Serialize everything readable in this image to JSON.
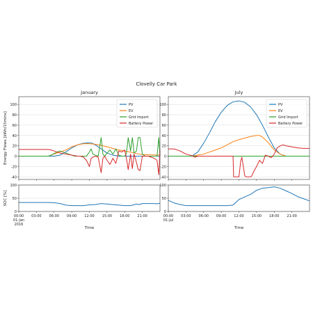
{
  "figure_title": "Clovelly Car Park",
  "colors": {
    "PV": "#1f77b4",
    "EV": "#ff7f0e",
    "Grid Import": "#2ca02c",
    "Battery Power": "#d62728",
    "SOC": "#1f77b4"
  },
  "chart_data": [
    {
      "type": "line",
      "panel": "energy",
      "title": "January",
      "ylabel": "Energy Flows [kWh/15mins]",
      "ylim": [
        -45,
        115
      ],
      "yticks": [
        -40,
        -20,
        0,
        20,
        40,
        60,
        80,
        100
      ],
      "grid": true,
      "legend": "top-right",
      "series": [
        {
          "name": "PV",
          "x": [
            0,
            6,
            7,
            8,
            9,
            10,
            11,
            12,
            12.5,
            13,
            14,
            15,
            16,
            17,
            24
          ],
          "y": [
            0,
            0,
            2,
            8,
            16,
            22,
            25,
            26,
            25,
            22,
            14,
            6,
            2,
            0,
            0
          ]
        },
        {
          "name": "EV",
          "x": [
            0,
            5,
            6,
            7,
            8,
            9,
            10,
            11,
            12,
            13,
            14,
            15,
            16,
            17,
            18,
            19,
            20,
            21,
            24
          ],
          "y": [
            0,
            0,
            4,
            8,
            12,
            18,
            22,
            24,
            24,
            23,
            21,
            18,
            15,
            12,
            10,
            8,
            5,
            3,
            2
          ]
        },
        {
          "name": "Grid Import",
          "x": [
            0,
            5,
            5.5,
            6,
            6.5,
            7,
            7.5,
            8,
            8.5,
            9,
            9.5,
            10,
            10.5,
            11,
            11.5,
            12,
            12.3,
            12.6,
            13,
            13.5,
            14,
            14.3,
            14.6,
            15,
            15.5,
            16,
            16.5,
            17,
            17.5,
            18,
            18.3,
            18.6,
            19,
            19.3,
            19.6,
            20,
            20.3,
            20.6,
            21,
            21.5,
            22,
            22.5,
            23,
            23.5,
            23.8,
            24
          ],
          "y": [
            0,
            0,
            2,
            5,
            8,
            10,
            8,
            6,
            4,
            2,
            0,
            0,
            0,
            0,
            0,
            8,
            14,
            4,
            2,
            0,
            36,
            4,
            0,
            6,
            12,
            4,
            14,
            2,
            0,
            0,
            6,
            36,
            10,
            36,
            6,
            10,
            36,
            36,
            4,
            0,
            0,
            0,
            0,
            0,
            36,
            0
          ]
        },
        {
          "name": "Battery Power",
          "x": [
            0,
            5,
            5.5,
            6,
            6.5,
            7,
            7.5,
            8,
            8.5,
            9,
            9.5,
            10,
            10.5,
            11,
            11.5,
            12,
            12.3,
            12.6,
            13,
            13.5,
            14,
            14.3,
            14.6,
            15,
            15.5,
            16,
            16.5,
            17,
            17.5,
            18,
            18.3,
            18.6,
            19,
            19.3,
            19.6,
            20,
            20.3,
            20.6,
            21,
            21.5,
            22,
            22.5,
            23,
            23.5,
            23.8,
            24
          ],
          "y": [
            13,
            13,
            12,
            10,
            8,
            6,
            5,
            4,
            3,
            2,
            1,
            0,
            0,
            -2,
            -8,
            -20,
            -4,
            -2,
            0,
            -2,
            -32,
            -4,
            0,
            -8,
            -16,
            -4,
            -14,
            10,
            8,
            12,
            -4,
            -26,
            4,
            -24,
            4,
            -12,
            -26,
            -28,
            0,
            0,
            0,
            -2,
            -4,
            -8,
            -36,
            12
          ]
        }
      ]
    },
    {
      "type": "line",
      "panel": "energy",
      "title": "July",
      "ylim": [
        -45,
        115
      ],
      "yticks": [
        -40,
        -20,
        0,
        20,
        40,
        60,
        80,
        100
      ],
      "grid": true,
      "legend": "top-right",
      "series": [
        {
          "name": "PV",
          "x": [
            0,
            3,
            4,
            5,
            6,
            7,
            8,
            9,
            10,
            11,
            12,
            13,
            14,
            15,
            16,
            17,
            18,
            19,
            20,
            24
          ],
          "y": [
            0,
            0,
            0,
            8,
            25,
            45,
            67,
            85,
            98,
            105,
            107,
            104,
            95,
            80,
            60,
            37,
            16,
            4,
            0,
            0
          ]
        },
        {
          "name": "EV",
          "x": [
            0,
            3,
            4,
            5,
            6,
            7,
            8,
            9,
            10,
            11,
            12,
            13,
            14,
            15,
            15.5,
            16,
            17,
            18,
            19,
            20,
            24
          ],
          "y": [
            0,
            0,
            0,
            2,
            4,
            8,
            12,
            16,
            22,
            28,
            32,
            35,
            38,
            40,
            40,
            37,
            26,
            12,
            4,
            0,
            0
          ]
        },
        {
          "name": "Grid Import",
          "x": [
            0,
            24
          ],
          "y": [
            0,
            0
          ]
        },
        {
          "name": "Battery Power",
          "x": [
            0,
            1,
            2,
            3,
            4,
            4.5,
            5,
            6,
            7,
            8,
            9,
            10,
            11,
            11.1,
            11.4,
            12,
            12.3,
            12.5,
            13,
            13.2,
            13.5,
            14,
            14.2,
            14.5,
            15,
            15.5,
            16,
            16.5,
            17,
            17.5,
            18,
            18.5,
            19,
            19.5,
            20,
            21,
            22,
            23,
            24
          ],
          "y": [
            14,
            14,
            10,
            4,
            1,
            -2,
            0,
            0,
            0,
            0,
            0,
            0,
            0,
            -40,
            -40,
            -40,
            -10,
            -2,
            -38,
            -40,
            -40,
            -40,
            -38,
            -30,
            -20,
            -8,
            -14,
            2,
            0,
            -3,
            4,
            16,
            20,
            22,
            20,
            18,
            16,
            15,
            15
          ]
        }
      ]
    },
    {
      "type": "line",
      "panel": "soc",
      "ylabel": "SOC [%]",
      "xlabel": "Time",
      "ylim": [
        0,
        100
      ],
      "yticks": [
        0,
        50,
        100
      ],
      "grid": true,
      "xticks": [
        "00:00",
        "03:00",
        "06:00",
        "09:00",
        "12:00",
        "15:00",
        "18:00",
        "21:00"
      ],
      "x_origin_label": [
        "01-Jan",
        "2016"
      ],
      "series": [
        {
          "name": "SOC",
          "x": [
            0,
            5,
            6,
            7,
            8,
            9,
            10,
            11,
            12,
            13,
            13.5,
            14,
            14.5,
            15,
            16,
            17,
            18,
            19,
            20,
            20.5,
            21,
            22,
            23,
            23.5,
            24
          ],
          "y": [
            34,
            34,
            33,
            30,
            24,
            22,
            22,
            22,
            25,
            26,
            28,
            30,
            29,
            28,
            26,
            24,
            22,
            22,
            28,
            26,
            30,
            30,
            30,
            29,
            31
          ]
        }
      ]
    },
    {
      "type": "line",
      "panel": "soc",
      "xlabel": "Time",
      "ylim": [
        0,
        100
      ],
      "yticks": [
        0,
        50,
        100
      ],
      "grid": true,
      "xticks": [
        "00:00",
        "03:00",
        "06:00",
        "09:00",
        "12:00",
        "15:00",
        "18:00",
        "21:00"
      ],
      "x_origin_label": [
        "01-Jul"
      ],
      "series": [
        {
          "name": "SOC",
          "x": [
            0,
            1,
            2,
            3,
            4,
            5,
            6,
            7,
            8,
            9,
            10,
            11,
            12,
            13,
            14,
            15,
            16,
            17,
            18,
            19,
            20,
            21,
            22,
            23,
            24
          ],
          "y": [
            42,
            32,
            26,
            22,
            22,
            22,
            22,
            22,
            22,
            22,
            22,
            24,
            45,
            55,
            65,
            80,
            88,
            90,
            93,
            88,
            78,
            68,
            56,
            48,
            40
          ]
        }
      ]
    }
  ]
}
